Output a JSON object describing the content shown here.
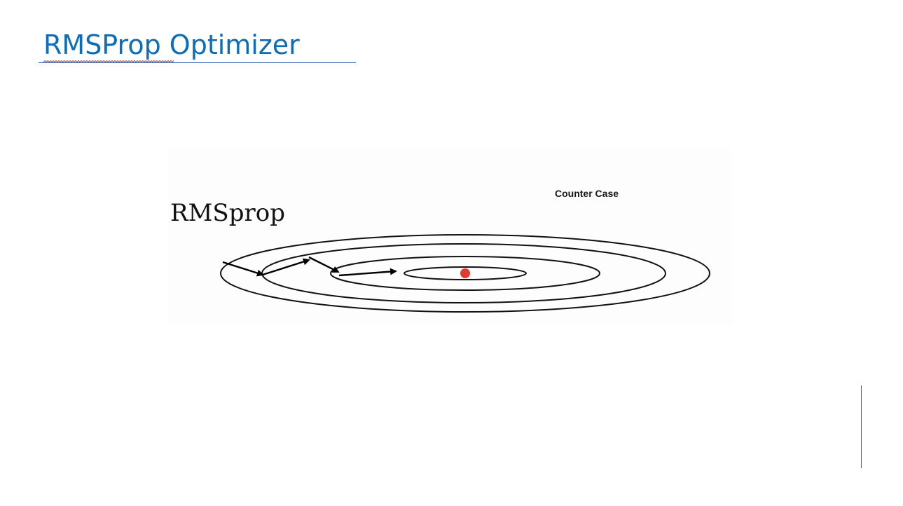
{
  "slide": {
    "title": "RMSProp Optimizer",
    "accent_color": "#0c6db8",
    "rule_color": "#2f62a8"
  },
  "figure": {
    "heading": "RMSprop",
    "caption": "Counter Case",
    "contour_count": 4,
    "step_count": 4,
    "minimum_color": "#e23b30"
  }
}
